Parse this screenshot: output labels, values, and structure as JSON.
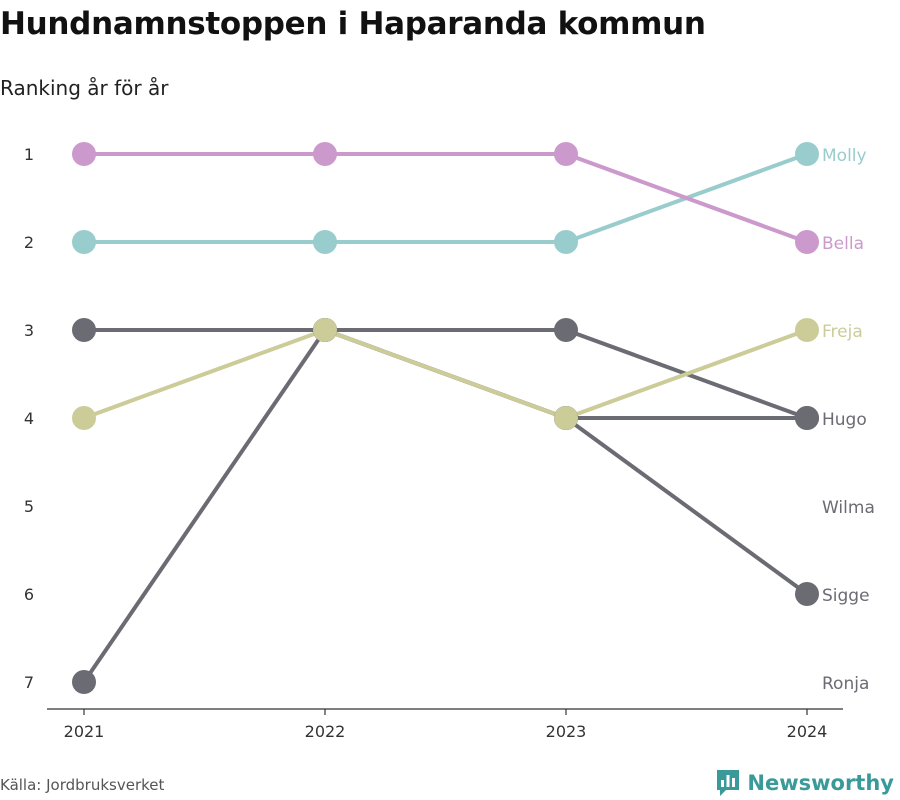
{
  "header": {
    "title": "Hundnamnstoppen i Haparanda kommun",
    "subtitle": "Ranking år för år"
  },
  "footer": {
    "source": "Källa: Jordbruksverket",
    "brand": "Newsworthy",
    "brand_icon": "bar-chart-speech-bubble-icon"
  },
  "colors": {
    "Molly": "#99cccc",
    "Bella": "#cc99cc",
    "Freja": "#cccc99",
    "Hugo": "#6b6b73",
    "Sigge": "#6b6b73",
    "Wilma": "#6b6b73",
    "Ronja": "#6b6b73",
    "brand": "#3a9a9a"
  },
  "chart_data": {
    "type": "line",
    "title": "Hundnamnstoppen i Haparanda kommun",
    "subtitle": "Ranking år för år",
    "x": [
      "2021",
      "2022",
      "2023",
      "2024"
    ],
    "y_ticks": [
      1,
      2,
      3,
      4,
      5,
      6,
      7
    ],
    "y_reversed": true,
    "ylim": [
      1,
      7
    ],
    "grid": false,
    "legend": "end-labels-right",
    "series": [
      {
        "name": "Ronja",
        "values": [
          7,
          3,
          4,
          null
        ]
      },
      {
        "name": "Wilma",
        "values": [
          3,
          3,
          3,
          4
        ]
      },
      {
        "name": "Sigge",
        "values": [
          null,
          3,
          4,
          6
        ]
      },
      {
        "name": "Hugo",
        "values": [
          null,
          null,
          4,
          4
        ]
      },
      {
        "name": "Freja",
        "values": [
          4,
          3,
          4,
          3
        ]
      },
      {
        "name": "Molly",
        "values": [
          2,
          2,
          2,
          1
        ]
      },
      {
        "name": "Bella",
        "values": [
          1,
          1,
          1,
          2
        ]
      }
    ],
    "end_labels": [
      {
        "name": "Molly",
        "rank": 1
      },
      {
        "name": "Bella",
        "rank": 2
      },
      {
        "name": "Freja",
        "rank": 3
      },
      {
        "name": "Hugo",
        "rank": 4
      },
      {
        "name": "Wilma",
        "rank": 5
      },
      {
        "name": "Sigge",
        "rank": 6
      },
      {
        "name": "Ronja",
        "rank": 7
      }
    ]
  }
}
